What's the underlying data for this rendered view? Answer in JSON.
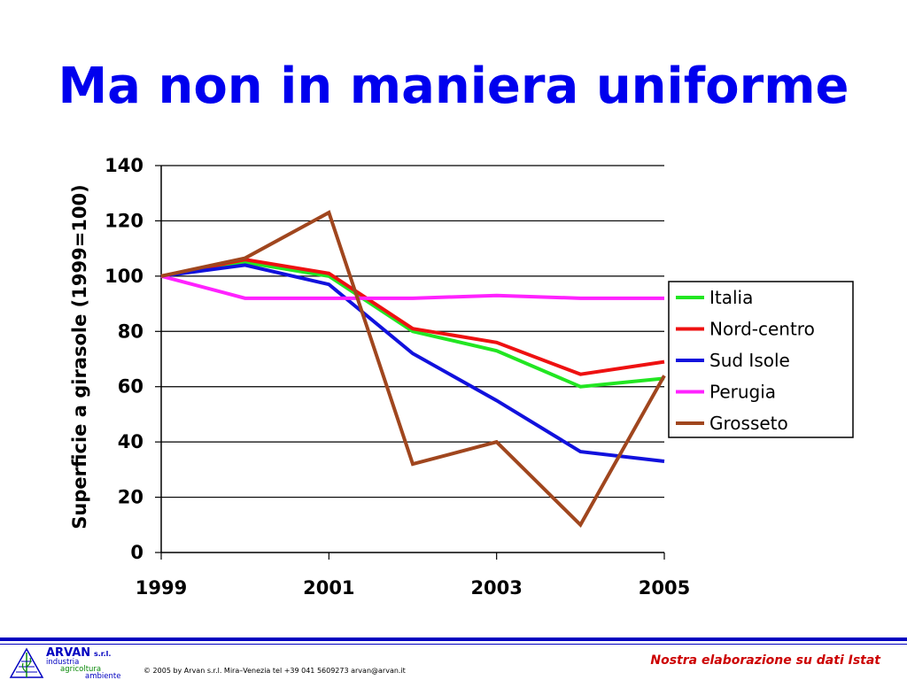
{
  "slide": {
    "title": "Ma non in maniera uniforme"
  },
  "chart_data": {
    "type": "line",
    "title": "",
    "ylabel": "Superficie a girasole (1999=100)",
    "xlabel": "",
    "x": [
      1999,
      2000,
      2001,
      2002,
      2003,
      2004,
      2005
    ],
    "x_tick_labels": [
      "1999",
      "2001",
      "2003",
      "2005"
    ],
    "x_ticks": [
      1999,
      2001,
      2003,
      2005
    ],
    "ylim": [
      0,
      140
    ],
    "y_ticks": [
      0,
      20,
      40,
      60,
      80,
      100,
      120,
      140
    ],
    "grid": "horizontal",
    "legend_position": "right",
    "series": [
      {
        "name": "Italia",
        "color": "#22e622",
        "values": [
          100,
          105,
          100,
          80,
          73,
          60,
          63
        ]
      },
      {
        "name": "Nord-centro",
        "color": "#ee1111",
        "values": [
          100,
          106,
          101,
          81,
          76,
          64.5,
          69
        ]
      },
      {
        "name": "Sud Isole",
        "color": "#1111dd",
        "values": [
          100,
          104,
          97,
          72,
          55,
          36.5,
          33
        ]
      },
      {
        "name": "Perugia",
        "color": "#ff22ff",
        "values": [
          100,
          92,
          92,
          92,
          93,
          92,
          92
        ]
      },
      {
        "name": "Grosseto",
        "color": "#a0461e",
        "values": [
          100,
          106.5,
          123,
          32,
          40,
          10,
          64
        ]
      }
    ]
  },
  "footer": {
    "company": "ARVAN",
    "company_suffix": "s.r.l.",
    "logo_words": [
      "industria",
      "agricoltura",
      "ambiente"
    ],
    "copyright": "© 2005 by Arvan s.r.l. Mira–Venezia tel +39 041 5609273 arvan@arvan.it",
    "source": "Nostra elaborazione su dati Istat",
    "accent_color": "#0000c0"
  }
}
